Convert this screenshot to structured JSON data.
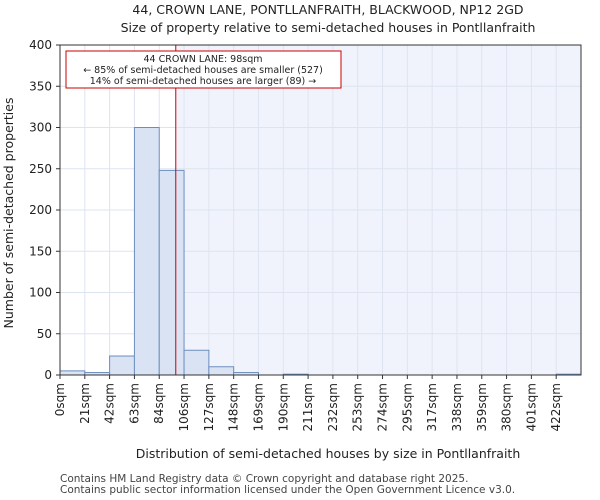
{
  "chart_data": {
    "type": "bar",
    "title": "44, CROWN LANE, PONTLLANFRAITH, BLACKWOOD, NP12 2GD",
    "subtitle": "Size of property relative to semi-detached houses in Pontllanfraith",
    "xlabel": "Distribution of semi-detached houses by size in Pontllanfraith",
    "ylabel": "Number of semi-detached properties",
    "ylim": [
      0,
      400
    ],
    "yticks": [
      0,
      50,
      100,
      150,
      200,
      250,
      300,
      350,
      400
    ],
    "bin_width": 21,
    "tick_labels": [
      "0sqm",
      "21sqm",
      "42sqm",
      "63sqm",
      "84sqm",
      "106sqm",
      "127sqm",
      "148sqm",
      "169sqm",
      "190sqm",
      "211sqm",
      "232sqm",
      "253sqm",
      "274sqm",
      "295sqm",
      "317sqm",
      "338sqm",
      "359sqm",
      "380sqm",
      "401sqm",
      "422sqm"
    ],
    "values": [
      5,
      3,
      23,
      300,
      248,
      30,
      10,
      3,
      0,
      1,
      0,
      0,
      0,
      0,
      0,
      0,
      0,
      0,
      0,
      0,
      1
    ],
    "property_size": 98,
    "annotation": {
      "line1": "44 CROWN LANE: 98sqm",
      "line2": "← 85% of semi-detached houses are smaller (527)",
      "line3": "14% of semi-detached houses are larger (89) →"
    },
    "colors": {
      "bar_fill": "#dae3f3",
      "bar_stroke": "#6c8ebf",
      "highlight": "#f0f3fb",
      "marker_line": "#cc0000"
    }
  },
  "footer": {
    "line1": "Contains HM Land Registry data © Crown copyright and database right 2025.",
    "line2": "Contains public sector information licensed under the Open Government Licence v3.0."
  }
}
